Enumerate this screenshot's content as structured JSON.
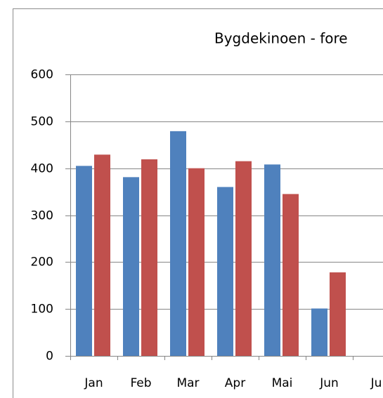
{
  "chart_data": {
    "type": "bar",
    "title": "Bygdekinoen - fore",
    "categories": [
      "Jan",
      "Feb",
      "Mar",
      "Apr",
      "Mai",
      "Jun",
      "Ju"
    ],
    "series": [
      {
        "color": "#4f81bd",
        "values": [
          405,
          381,
          479,
          360,
          408,
          101,
          null
        ]
      },
      {
        "color": "#c0504d",
        "values": [
          429,
          419,
          400,
          415,
          345,
          178,
          null
        ]
      }
    ],
    "ylim": [
      0,
      600
    ],
    "yticks": [
      0,
      100,
      200,
      300,
      400,
      500,
      600
    ],
    "grid": true
  }
}
